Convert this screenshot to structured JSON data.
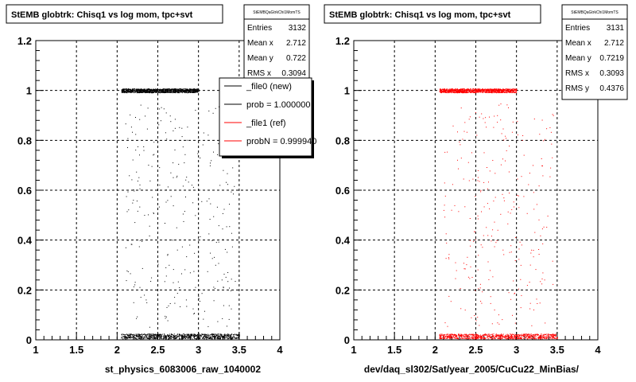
{
  "footer_text": "",
  "chart_data": [
    {
      "type": "scatter",
      "title": "StEMB globtrk: Chisq1 vs log mom, tpc+svt",
      "xlabel": "st_physics_6083006_raw_1040002",
      "ylabel": "",
      "xlim": [
        1,
        4
      ],
      "ylim": [
        0,
        1.2
      ],
      "x_ticks": [
        "1",
        "1.5",
        "2",
        "2.5",
        "3",
        "3.5",
        "4"
      ],
      "y_ticks": [
        "0",
        "0.2",
        "0.4",
        "0.6",
        "0.8",
        "1",
        "1.2"
      ],
      "grid": true,
      "marker_color": "#000000",
      "stats": {
        "header": "StEMBQaGtrkChi1MomTS",
        "entries": [
          {
            "label": "Entries",
            "value": "3132"
          },
          {
            "label": "Mean x",
            "value": "2.712"
          },
          {
            "label": "Mean y",
            "value": "0.722"
          },
          {
            "label": "RMS x",
            "value": "0.3094"
          }
        ]
      },
      "legend": {
        "placement": "top-right",
        "entries": [
          {
            "label": "_file0 (new)",
            "color": "#000000"
          },
          {
            "label": "prob = 1.000000",
            "color": "#000000"
          },
          {
            "label": "_file1 (ref)",
            "color": "#ff0000"
          },
          {
            "label": "probN = 0.999940",
            "color": "#ff0000"
          }
        ]
      },
      "distribution": {
        "x_range": [
          2.05,
          3.5
        ],
        "bands": [
          {
            "y": 1.0,
            "spread": 0.008,
            "count": 1100,
            "x_range": [
              2.05,
              3.0
            ]
          },
          {
            "y": 0.015,
            "spread": 0.01,
            "count": 900,
            "x_range": [
              2.05,
              3.5
            ]
          },
          {
            "y": 0.5,
            "spread": 0.45,
            "count": 260,
            "x_range": [
              2.1,
              3.45
            ]
          }
        ]
      }
    },
    {
      "type": "scatter",
      "title": "StEMB globtrk: Chisq1 vs log mom, tpc+svt",
      "xlabel": "dev/daq_sl302/Sat/year_2005/CuCu22_MinBias/",
      "ylabel": "",
      "xlim": [
        1,
        4
      ],
      "ylim": [
        0,
        1.2
      ],
      "x_ticks": [
        "1",
        "1.5",
        "2",
        "2.5",
        "3",
        "3.5",
        "4"
      ],
      "y_ticks": [
        "0",
        "0.2",
        "0.4",
        "0.6",
        "0.8",
        "1",
        "1.2"
      ],
      "grid": true,
      "marker_color": "#ff0000",
      "stats": {
        "header": "StEMBQaGtrkChi1MomTS",
        "entries": [
          {
            "label": "Entries",
            "value": "3131"
          },
          {
            "label": "Mean x",
            "value": "2.712"
          },
          {
            "label": "Mean y",
            "value": "0.7219"
          },
          {
            "label": "RMS x",
            "value": "0.3093"
          },
          {
            "label": "RMS y",
            "value": "0.4376"
          }
        ]
      },
      "legend": null,
      "distribution": {
        "x_range": [
          2.05,
          3.5
        ],
        "bands": [
          {
            "y": 1.0,
            "spread": 0.008,
            "count": 1100,
            "x_range": [
              2.05,
              3.0
            ]
          },
          {
            "y": 0.015,
            "spread": 0.01,
            "count": 900,
            "x_range": [
              2.05,
              3.5
            ]
          },
          {
            "y": 0.5,
            "spread": 0.45,
            "count": 260,
            "x_range": [
              2.1,
              3.45
            ]
          }
        ]
      }
    }
  ]
}
